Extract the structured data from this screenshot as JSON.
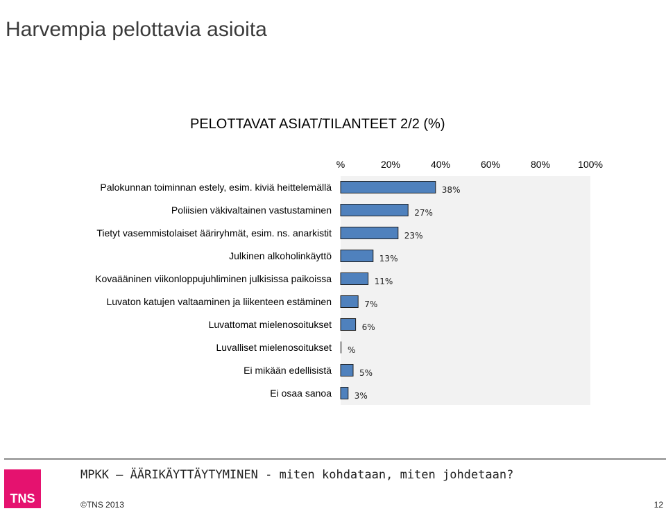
{
  "page": {
    "title": "Harvempia pelottavia asioita"
  },
  "chart_data": {
    "type": "bar",
    "orientation": "horizontal",
    "title": "PELOTTAVAT ASIAT/TILANTEET 2/2 (%)",
    "x_tick_labels": [
      "%",
      "20%",
      "40%",
      "60%",
      "80%",
      "100%"
    ],
    "xlim": [
      0,
      100
    ],
    "categories": [
      "Palokunnan toiminnan estely, esim. kiviä heittelemällä",
      "Poliisien väkivaltainen vastustaminen",
      "Tietyt vasemmistolaiset ääriryhmät, esim. ns. anarkistit",
      "Julkinen alkoholinkäyttö",
      "Kovaääninen viikonloppujuhliminen julkisissa paikoissa",
      "Luvaton katujen valtaaminen ja liikenteen estäminen",
      "Luvattomat mielenosoitukset",
      "Luvalliset mielenosoitukset",
      "Ei mikään edellisistä",
      "Ei osaa sanoa"
    ],
    "values": [
      38,
      27,
      23,
      13,
      11,
      7,
      6,
      0,
      5,
      3
    ],
    "value_labels": [
      "38%",
      "27%",
      "23%",
      "13%",
      "11%",
      "7%",
      "6%",
      "%",
      "5%",
      "3%"
    ],
    "bar_color": "#4f81bd",
    "bar_border_color": "#1f1f1f",
    "plot_background": "#f2f2f2",
    "grid": false,
    "legend": "none"
  },
  "footer": {
    "subtitle": "MPKK – ÄÄRIKÄYTTÄYTYMINEN - miten kohdataan, miten johdetaan?",
    "logo_text": "TNS",
    "logo_color": "#e5126f",
    "copyright": "©TNS 2013",
    "page_number": "12"
  }
}
